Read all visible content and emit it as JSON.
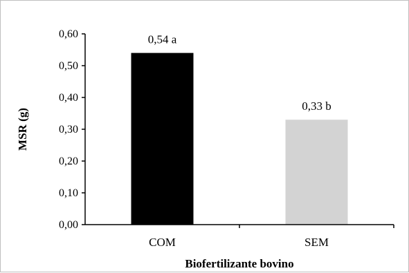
{
  "chart_data": {
    "type": "bar",
    "categories": [
      "COM",
      "SEM"
    ],
    "values": [
      0.54,
      0.33
    ],
    "data_labels": [
      "0,54 a",
      "0,33 b"
    ],
    "bar_colors": [
      "#000000",
      "#d3d3d3"
    ],
    "xlabel": "Biofertilizante bovino",
    "ylabel": "MSR (g)",
    "ylim": [
      0,
      0.6
    ],
    "yticks": [
      0,
      0.1,
      0.2,
      0.3,
      0.4,
      0.5,
      0.6
    ],
    "ytick_labels": [
      "0,00",
      "0,10",
      "0,20",
      "0,30",
      "0,40",
      "0,50",
      "0,60"
    ],
    "grid": false,
    "legend": "none"
  }
}
